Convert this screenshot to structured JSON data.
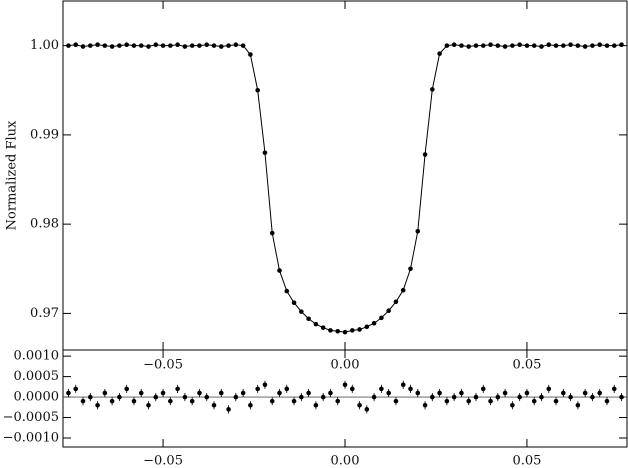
{
  "chart_data": [
    {
      "type": "scatter",
      "ylabel": "Normalized Flux",
      "line": true,
      "color": "#000000",
      "x": [
        -0.076,
        -0.074,
        -0.072,
        -0.07,
        -0.068,
        -0.066,
        -0.064,
        -0.062,
        -0.06,
        -0.058,
        -0.056,
        -0.054,
        -0.052,
        -0.05,
        -0.048,
        -0.046,
        -0.044,
        -0.042,
        -0.04,
        -0.038,
        -0.036,
        -0.034,
        -0.032,
        -0.03,
        -0.028,
        -0.026,
        -0.024,
        -0.022,
        -0.02,
        -0.018,
        -0.016,
        -0.014,
        -0.012,
        -0.01,
        -0.008,
        -0.006,
        -0.004,
        -0.002,
        0.0,
        0.002,
        0.004,
        0.006,
        0.008,
        0.01,
        0.012,
        0.014,
        0.016,
        0.018,
        0.02,
        0.022,
        0.024,
        0.026,
        0.028,
        0.03,
        0.032,
        0.034,
        0.036,
        0.038,
        0.04,
        0.042,
        0.044,
        0.046,
        0.048,
        0.05,
        0.052,
        0.054,
        0.056,
        0.058,
        0.06,
        0.062,
        0.064,
        0.066,
        0.068,
        0.07,
        0.072,
        0.074,
        0.076
      ],
      "values": [
        1.0,
        1.0001,
        0.9999,
        1.0,
        1.0001,
        1.0,
        0.9999,
        1.0,
        1.0001,
        1.0,
        1.0,
        0.9999,
        1.0001,
        1.0,
        1.0,
        1.0001,
        0.9999,
        1.0,
        1.0,
        1.0001,
        1.0,
        0.9999,
        1.0,
        1.0001,
        1.0,
        0.999,
        0.995,
        0.988,
        0.979,
        0.9748,
        0.9725,
        0.9712,
        0.9702,
        0.9694,
        0.9688,
        0.9684,
        0.9681,
        0.968,
        0.9679,
        0.9681,
        0.9682,
        0.9685,
        0.9689,
        0.9695,
        0.9703,
        0.9713,
        0.9726,
        0.975,
        0.9792,
        0.9878,
        0.9951,
        0.9991,
        1.0,
        1.0001,
        1.0,
        0.9999,
        1.0,
        1.0,
        1.0001,
        1.0,
        0.9999,
        1.0,
        1.0001,
        1.0,
        1.0,
        0.9999,
        1.0001,
        1.0,
        1.0,
        1.0001,
        1.0,
        0.9999,
        1.0,
        1.0001,
        1.0,
        1.0,
        1.0001
      ],
      "xlim": [
        -0.0775,
        0.0775
      ],
      "ylim": [
        0.9659,
        1.005
      ],
      "xticks": [
        {
          "value": -0.05,
          "label": "−0.05"
        },
        {
          "value": 0,
          "label": "0.00"
        },
        {
          "value": 0.05,
          "label": "0.05"
        }
      ],
      "yticks": [
        {
          "value": 0.97,
          "label": "0.97"
        },
        {
          "value": 0.98,
          "label": "0.98"
        },
        {
          "value": 0.99,
          "label": "0.99"
        },
        {
          "value": 1,
          "label": "1.00"
        }
      ]
    },
    {
      "type": "scatter",
      "color": "#000000",
      "reference_line": 0,
      "x": [
        -0.076,
        -0.074,
        -0.072,
        -0.07,
        -0.068,
        -0.066,
        -0.064,
        -0.062,
        -0.06,
        -0.058,
        -0.056,
        -0.054,
        -0.052,
        -0.05,
        -0.048,
        -0.046,
        -0.044,
        -0.042,
        -0.04,
        -0.038,
        -0.036,
        -0.034,
        -0.032,
        -0.03,
        -0.028,
        -0.026,
        -0.024,
        -0.022,
        -0.02,
        -0.018,
        -0.016,
        -0.014,
        -0.012,
        -0.01,
        -0.008,
        -0.006,
        -0.004,
        -0.002,
        0.0,
        0.002,
        0.004,
        0.006,
        0.008,
        0.01,
        0.012,
        0.014,
        0.016,
        0.018,
        0.02,
        0.022,
        0.024,
        0.026,
        0.028,
        0.03,
        0.032,
        0.034,
        0.036,
        0.038,
        0.04,
        0.042,
        0.044,
        0.046,
        0.048,
        0.05,
        0.052,
        0.054,
        0.056,
        0.058,
        0.06,
        0.062,
        0.064,
        0.066,
        0.068,
        0.07,
        0.072,
        0.074,
        0.076
      ],
      "values": [
        0.0001,
        0.0002,
        -0.0001,
        0.0,
        -0.0002,
        0.0001,
        -0.0001,
        0.0,
        0.0002,
        -0.0001,
        0.0001,
        -0.0002,
        0.0,
        0.0001,
        -0.0001,
        0.0002,
        0.0,
        -0.0001,
        0.0001,
        0.0,
        -0.0002,
        0.0001,
        -0.0003,
        0.0,
        0.0001,
        -0.0002,
        0.0002,
        0.0003,
        -0.0001,
        0.0001,
        0.0002,
        -0.0001,
        0.0,
        0.0001,
        -0.0002,
        0.0,
        0.0001,
        -0.0001,
        0.0003,
        0.0002,
        -0.0002,
        -0.0003,
        0.0,
        0.0002,
        0.0001,
        -0.0001,
        0.0003,
        0.0002,
        0.0001,
        -0.0002,
        0.0,
        0.0001,
        -0.0001,
        0.0,
        0.0001,
        -0.0001,
        0.0,
        0.0002,
        -0.0001,
        0.0,
        0.0001,
        -0.0002,
        0.0,
        0.0001,
        -0.0001,
        0.0,
        0.0002,
        -0.0001,
        0.0001,
        0.0,
        -0.0002,
        0.0001,
        0.0,
        0.0001,
        -0.0001,
        0.0002,
        0.0
      ],
      "errors": [
        0.0001,
        0.0001,
        0.0001,
        0.0001,
        0.0001,
        0.0001,
        0.0001,
        0.0001,
        0.0001,
        0.0001,
        0.0001,
        0.0001,
        0.0001,
        0.0001,
        0.0001,
        0.0001,
        0.0001,
        0.0001,
        0.0001,
        0.0001,
        0.0001,
        0.0001,
        0.0001,
        0.0001,
        0.0001,
        0.0001,
        0.0001,
        0.0001,
        0.0001,
        0.0001,
        0.0001,
        0.0001,
        0.0001,
        0.0001,
        0.0001,
        0.0001,
        0.0001,
        0.0001,
        0.0001,
        0.0001,
        0.0001,
        0.0001,
        0.0001,
        0.0001,
        0.0001,
        0.0001,
        0.0001,
        0.0001,
        0.0001,
        0.0001,
        0.0001,
        0.0001,
        0.0001,
        0.0001,
        0.0001,
        0.0001,
        0.0001,
        0.0001,
        0.0001,
        0.0001,
        0.0001,
        0.0001,
        0.0001,
        0.0001,
        0.0001,
        0.0001,
        0.0001,
        0.0001,
        0.0001,
        0.0001,
        0.0001,
        0.0001,
        0.0001,
        0.0001,
        0.0001,
        0.0001,
        0.0001
      ],
      "xlim": [
        -0.0775,
        0.0775
      ],
      "ylim": [
        -0.00122,
        0.00115
      ],
      "xticks": [
        {
          "value": -0.05,
          "label": "−0.05"
        },
        {
          "value": 0,
          "label": "0.00"
        },
        {
          "value": 0.05,
          "label": "0.05"
        }
      ],
      "yticks": [
        {
          "value": -0.001,
          "label": "−0.0010"
        },
        {
          "value": -0.0005,
          "label": "−0.0005"
        },
        {
          "value": 0,
          "label": "0.0000"
        },
        {
          "value": 0.0005,
          "label": "0.0005"
        },
        {
          "value": 0.001,
          "label": "0.0010"
        }
      ]
    }
  ]
}
